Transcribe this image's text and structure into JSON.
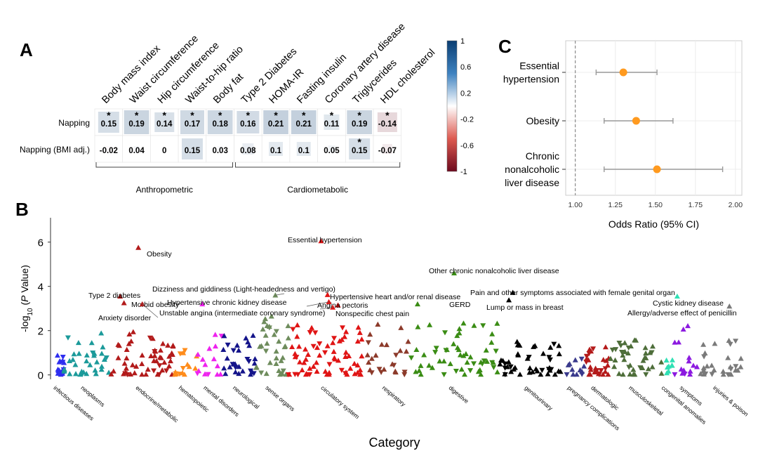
{
  "panels": {
    "a": "A",
    "b": "B",
    "c": "C"
  },
  "chart_data": [
    {
      "type": "heatmap",
      "panel": "A",
      "columns": [
        "Body mass index",
        "Waist circumference",
        "Hip circumference",
        "Waist-to-hip ratio",
        "Body fat",
        "Type 2 Diabetes",
        "HOMA-IR",
        "Fasting insulin",
        "Coronary artery disease",
        "Triglycerides",
        "HDL cholesterol"
      ],
      "rows": [
        "Napping",
        "Napping (BMI adj.)"
      ],
      "values": [
        [
          0.15,
          0.19,
          0.14,
          0.17,
          0.18,
          0.16,
          0.21,
          0.21,
          0.11,
          0.19,
          -0.14
        ],
        [
          -0.02,
          0.04,
          0,
          0.15,
          0.03,
          0.08,
          0.1,
          0.1,
          0.05,
          0.15,
          -0.07
        ]
      ],
      "value_labels": [
        [
          "0.15",
          "0.19",
          "0.14",
          "0.17",
          "0.18",
          "0.16",
          "0.21",
          "0.21",
          "0.11",
          "0.19",
          "-0.14"
        ],
        [
          "-0.02",
          "0.04",
          "0",
          "0.15",
          "0.03",
          "0.08",
          "0.1",
          "0.1",
          "0.05",
          "0.15",
          "-0.07"
        ]
      ],
      "significant": [
        [
          true,
          true,
          true,
          true,
          true,
          true,
          true,
          true,
          true,
          true,
          true
        ],
        [
          false,
          false,
          false,
          false,
          false,
          false,
          false,
          false,
          false,
          true,
          false
        ]
      ],
      "star": "*",
      "groups": [
        {
          "label": "Anthropometric",
          "from": 0,
          "to": 4
        },
        {
          "label": "Cardiometabolic",
          "from": 5,
          "to": 10
        }
      ],
      "colorbar": {
        "ticks": [
          "1",
          "0.6",
          "0.2",
          "-0.2",
          "-0.6",
          "-1"
        ],
        "range": [
          -1,
          1
        ],
        "colors": {
          "high": "#0b3e72",
          "mid": "#ffffff",
          "low": "#6d0a1e"
        }
      }
    },
    {
      "type": "scatter",
      "panel": "B",
      "ylabel_prefix": "-log",
      "ylabel_sub": "10",
      "ylabel_open": " (",
      "ylabel_p": "P",
      "ylabel_suffix": " Value)",
      "xlabel": "Category",
      "yticks": [
        "0",
        "2",
        "4",
        "6"
      ],
      "ylim": [
        -0.2,
        7.1
      ],
      "categories": [
        "infectious diseases",
        "neoplasms",
        "endocrine/metabolic",
        "hematopoietic",
        "mental disorders",
        "neurological",
        "sense organs",
        "circulatory system",
        "respiratory",
        "digestive",
        "genitourinary",
        "pregnancy complications",
        "dermatologic",
        "musculoskeletal",
        "congenital anomalies",
        "symptoms",
        "injuries & poison"
      ],
      "category_colors": [
        "#2e2ef0",
        "#1b9a9a",
        "#b21a1a",
        "#ff8c1a",
        "#ee22ee",
        "#14148a",
        "#6e8c5c",
        "#e01414",
        "#8c3a2a",
        "#3a8c14",
        "#000000",
        "#3a3a8c",
        "#b41a1a",
        "#4e6e3a",
        "#2fe0b4",
        "#8c1ae0",
        "#7a7a7a"
      ],
      "category_ranges": [
        [
          0,
          6
        ],
        [
          6,
          42
        ],
        [
          42,
          90
        ],
        [
          90,
          108
        ],
        [
          108,
          128
        ],
        [
          128,
          153
        ],
        [
          153,
          178
        ],
        [
          178,
          238
        ],
        [
          238,
          272
        ],
        [
          272,
          340
        ],
        [
          340,
          388
        ],
        [
          388,
          406
        ],
        [
          406,
          424
        ],
        [
          424,
          464
        ],
        [
          464,
          474
        ],
        [
          474,
          492
        ],
        [
          492,
          525
        ]
      ],
      "category_points": [
        20,
        35,
        55,
        15,
        15,
        30,
        35,
        70,
        25,
        55,
        45,
        12,
        30,
        40,
        8,
        15,
        30
      ],
      "max_per_category": [
        1.1,
        1.9,
        2.0,
        1.3,
        2.6,
        1.9,
        2.7,
        2.6,
        2.3,
        2.5,
        1.6,
        0.8,
        1.3,
        1.6,
        0.8,
        2.4,
        1.7
      ],
      "labeled_points": [
        {
          "label": "Essential hypertension",
          "x": 203,
          "y": 6.05,
          "cat": 7
        },
        {
          "label": "Obesity",
          "x": 63,
          "y": 5.75,
          "cat": 2
        },
        {
          "label": "Other chronic nonalcoholic liver disease",
          "x": 305,
          "y": 4.6,
          "cat": 9
        },
        {
          "label": "Dizziness and giddiness (Light-headedness and vertigo)",
          "x": 168,
          "y": 3.6,
          "cat": 6
        },
        {
          "label": "Hypertensive heart and/or renal disease",
          "x": 208,
          "y": 3.62,
          "cat": 7
        },
        {
          "label": "Pain and other symptoms associated with female genital organ",
          "x": 350,
          "y": 3.72,
          "cat": 10
        },
        {
          "label": "Type 2 diabetes",
          "x": 49,
          "y": 3.55,
          "cat": 2
        },
        {
          "label": "Morbid obesity",
          "x": 52,
          "y": 3.25,
          "cat": 2
        },
        {
          "label": "Hypertensive chronic kidney disease",
          "x": 112,
          "y": 3.2,
          "cat": 4
        },
        {
          "label": "Angina pectoris",
          "x": 216,
          "y": 3.15,
          "cat": 7
        },
        {
          "label": "GERD",
          "x": 277,
          "y": 3.2,
          "cat": 9
        },
        {
          "label": "Cystic kidney disease",
          "x": 476,
          "y": 3.55,
          "cat": 14
        },
        {
          "label": "Unstable angina (intermediate coronary syndrome)",
          "x": 209,
          "y": 3.3,
          "cat": 7
        },
        {
          "label": "Lump or mass in breast",
          "x": 347,
          "y": 3.38,
          "cat": 10
        },
        {
          "label": "Nonspecific chest pain",
          "x": 212,
          "y": 3.05,
          "cat": 7
        },
        {
          "label": "Allergy/adverse effect of penicillin",
          "x": 516,
          "y": 3.1,
          "cat": 16
        },
        {
          "label": "Anxiety disorder",
          "x": 66,
          "y": 3.2,
          "cat": 2
        }
      ]
    },
    {
      "type": "scatter",
      "panel": "C",
      "xlabel": "Odds Ratio (95% CI)",
      "xticks": [
        "1.00",
        "1.25",
        "1.50",
        "1.75",
        "2.00"
      ],
      "xlim": [
        0.94,
        2.04
      ],
      "reference_line": 1.0,
      "point_color": "#ff9a1f",
      "series": [
        {
          "name_lines": [
            "Essential",
            "hypertension"
          ],
          "or": 1.3,
          "lo": 1.13,
          "hi": 1.51
        },
        {
          "name_lines": [
            "Obesity"
          ],
          "or": 1.38,
          "lo": 1.18,
          "hi": 1.61
        },
        {
          "name_lines": [
            "Chronic",
            "nonalcoholic",
            "liver disease"
          ],
          "or": 1.51,
          "lo": 1.18,
          "hi": 1.92
        }
      ]
    }
  ]
}
